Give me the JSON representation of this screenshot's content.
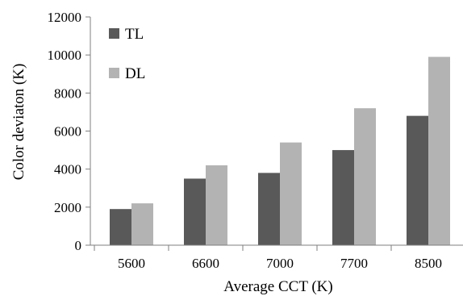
{
  "chart_data": {
    "type": "bar",
    "categories": [
      "5600",
      "6600",
      "7000",
      "7700",
      "8500"
    ],
    "series": [
      {
        "name": "TL",
        "values": [
          1900,
          3500,
          3800,
          5000,
          6800
        ],
        "color": "#595959"
      },
      {
        "name": "DL",
        "values": [
          2200,
          4200,
          5400,
          7200,
          9900
        ],
        "color": "#b3b3b3"
      }
    ],
    "title": "",
    "xlabel": "Average CCT (K)",
    "ylabel": "Color deviaton (K)",
    "ylim": [
      0,
      12000
    ],
    "yticks": [
      0,
      2000,
      4000,
      6000,
      8000,
      10000,
      12000
    ],
    "grid": false,
    "legend_position": "top-left"
  }
}
